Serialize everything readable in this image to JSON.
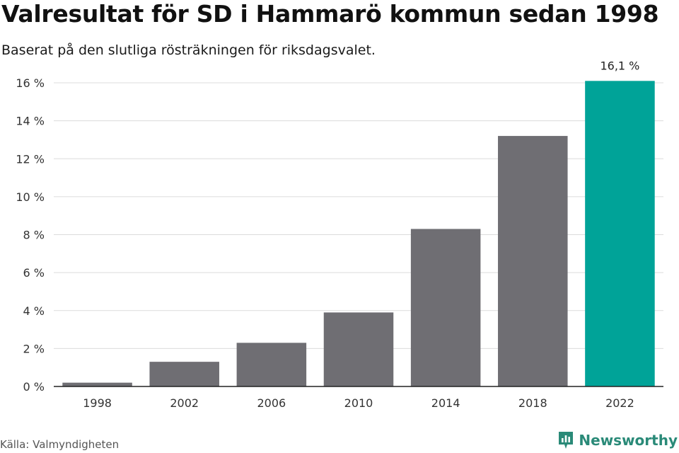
{
  "title": "Valresultat för SD i Hammarö kommun sedan 1998",
  "subtitle": "Baserat på den slutliga rösträkningen för riksdagsvalet.",
  "source": "Källa: Valmyndigheten",
  "brand": {
    "name": "Newsworthy",
    "icon": "newsworthy-logo-icon",
    "color": "#2a8a78"
  },
  "colors": {
    "bar": "#6f6e73",
    "highlight": "#00a398",
    "grid": "#dcdcdc",
    "axis": "#222222"
  },
  "chart_data": {
    "type": "bar",
    "categories": [
      "1998",
      "2002",
      "2006",
      "2010",
      "2014",
      "2018",
      "2022"
    ],
    "values": [
      0.2,
      1.3,
      2.3,
      3.9,
      8.3,
      13.2,
      16.1
    ],
    "highlight_index": 6,
    "data_labels": [
      {
        "index": 6,
        "text": "16,1 %"
      }
    ],
    "yticks": [
      0,
      2,
      4,
      6,
      8,
      10,
      12,
      14,
      16
    ],
    "ytick_labels": [
      "0 %",
      "2 %",
      "4 %",
      "6 %",
      "8 %",
      "10 %",
      "12 %",
      "14 %",
      "16 %"
    ],
    "ylim": [
      0,
      16
    ],
    "xlabel": "",
    "ylabel": "",
    "grid": true,
    "legend": "none"
  }
}
